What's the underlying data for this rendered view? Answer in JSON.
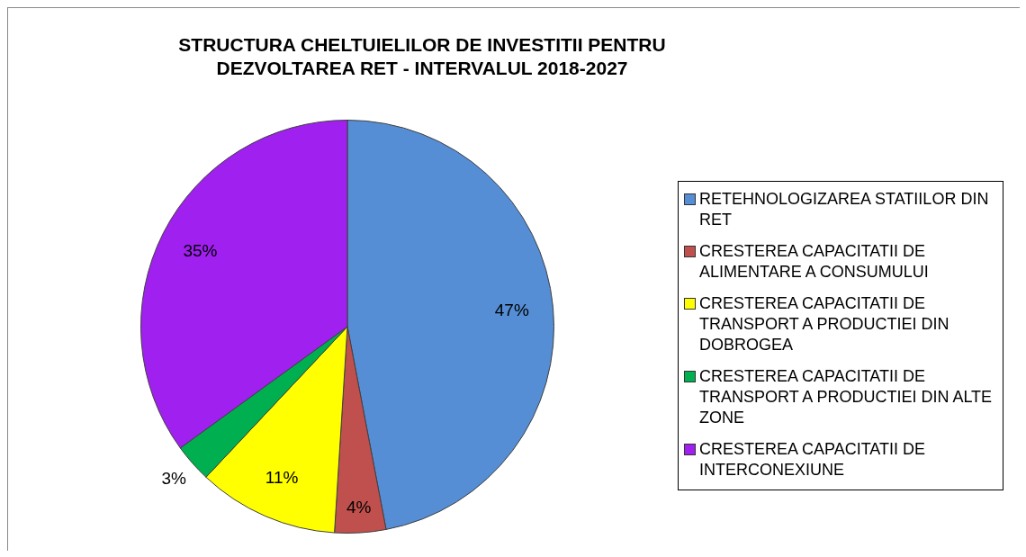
{
  "chart_data": {
    "type": "pie",
    "title": "STRUCTURA CHELTUIELILOR DE INVESTITII PENTRU DEZVOLTAREA RET - INTERVALUL 2018-2027",
    "categories": [
      "RETEHNOLOGIZAREA STATIILOR DIN RET",
      "CRESTEREA CAPACITATII DE ALIMENTARE A CONSUMULUI",
      "CRESTEREA CAPACITATII DE TRANSPORT A PRODUCTIEI DIN DOBROGEA",
      "CRESTEREA CAPACITATII DE TRANSPORT A  PRODUCTIEI DIN ALTE ZONE",
      "CRESTEREA CAPACITATII DE INTERCONEXIUNE"
    ],
    "values": [
      47,
      4,
      11,
      3,
      35
    ],
    "value_labels": [
      "47%",
      "4%",
      "11%",
      "3%",
      "35%"
    ],
    "colors": [
      "#558ed5",
      "#c0504d",
      "#ffff00",
      "#00b050",
      "#a020f0"
    ],
    "legend": "right"
  }
}
